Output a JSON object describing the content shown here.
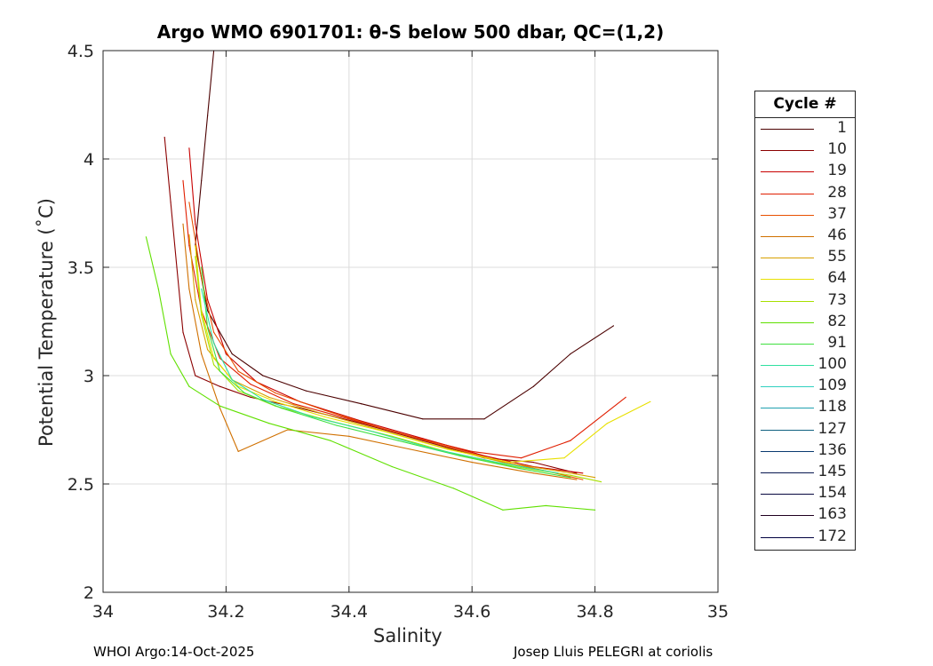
{
  "chart_data": {
    "type": "line",
    "title": "Argo WMO 6901701: θ-S below 500 dbar,  QC=(1,2)",
    "xlabel": "Salinity",
    "ylabel": "Potential Temperature (˚C)",
    "xlim": [
      34,
      35
    ],
    "ylim": [
      2,
      4.5
    ],
    "x_ticks": [
      "34",
      "34.2",
      "34.4",
      "34.6",
      "34.8",
      "35"
    ],
    "y_ticks": [
      "2",
      "2.5",
      "3",
      "3.5",
      "4",
      "4.5"
    ],
    "grid": true,
    "legend_title": "Cycle #",
    "legend_position": "right",
    "series": [
      {
        "name": "1",
        "color": "#4b0000",
        "x": [
          34.18,
          34.17,
          34.16,
          34.15,
          34.17,
          34.21,
          34.26,
          34.33,
          34.42,
          34.52,
          34.62,
          34.7,
          34.76,
          34.83
        ],
        "y": [
          4.5,
          4.2,
          3.9,
          3.6,
          3.3,
          3.1,
          3.0,
          2.93,
          2.87,
          2.8,
          2.8,
          2.95,
          3.1,
          3.23
        ]
      },
      {
        "name": "10",
        "color": "#8b0000",
        "x": [
          34.1,
          34.11,
          34.12,
          34.13,
          34.15,
          34.19,
          34.24,
          34.32,
          34.42,
          34.52,
          34.62,
          34.7,
          34.77
        ],
        "y": [
          4.1,
          3.8,
          3.5,
          3.2,
          3.0,
          2.95,
          2.9,
          2.85,
          2.78,
          2.7,
          2.62,
          2.6,
          2.55
        ]
      },
      {
        "name": "19",
        "color": "#c80000",
        "x": [
          34.14,
          34.15,
          34.17,
          34.2,
          34.25,
          34.32,
          34.42,
          34.52,
          34.62,
          34.7,
          34.78
        ],
        "y": [
          4.05,
          3.7,
          3.35,
          3.1,
          2.97,
          2.88,
          2.79,
          2.71,
          2.63,
          2.58,
          2.55
        ]
      },
      {
        "name": "28",
        "color": "#e01e00",
        "x": [
          34.13,
          34.14,
          34.16,
          34.19,
          34.24,
          34.31,
          34.4,
          34.5,
          34.6,
          34.68,
          34.76,
          34.85
        ],
        "y": [
          3.9,
          3.6,
          3.3,
          3.08,
          2.96,
          2.87,
          2.8,
          2.72,
          2.65,
          2.62,
          2.7,
          2.9
        ]
      },
      {
        "name": "37",
        "color": "#e85000",
        "x": [
          34.14,
          34.16,
          34.18,
          34.22,
          34.28,
          34.36,
          34.45,
          34.55,
          34.64,
          34.72,
          34.78
        ],
        "y": [
          3.8,
          3.45,
          3.2,
          3.02,
          2.92,
          2.84,
          2.76,
          2.68,
          2.61,
          2.56,
          2.52
        ]
      },
      {
        "name": "46",
        "color": "#d07000",
        "x": [
          34.13,
          34.14,
          34.16,
          34.19,
          34.22,
          34.3,
          34.4,
          34.5,
          34.6,
          34.7,
          34.77
        ],
        "y": [
          3.7,
          3.4,
          3.1,
          2.85,
          2.65,
          2.75,
          2.72,
          2.66,
          2.6,
          2.55,
          2.52
        ]
      },
      {
        "name": "55",
        "color": "#d8a000",
        "x": [
          34.14,
          34.15,
          34.17,
          34.21,
          34.27,
          34.35,
          34.45,
          34.55,
          34.65,
          34.74,
          34.8
        ],
        "y": [
          3.65,
          3.35,
          3.12,
          2.98,
          2.9,
          2.83,
          2.75,
          2.67,
          2.6,
          2.56,
          2.53
        ]
      },
      {
        "name": "64",
        "color": "#e8e000",
        "x": [
          34.15,
          34.16,
          34.18,
          34.22,
          34.28,
          34.36,
          34.46,
          34.56,
          34.66,
          34.75,
          34.82,
          34.89
        ],
        "y": [
          3.6,
          3.3,
          3.08,
          2.95,
          2.88,
          2.81,
          2.74,
          2.66,
          2.6,
          2.62,
          2.78,
          2.88
        ]
      },
      {
        "name": "73",
        "color": "#a8e000",
        "x": [
          34.15,
          34.16,
          34.18,
          34.22,
          34.28,
          34.37,
          34.47,
          34.57,
          34.67,
          34.76,
          34.81
        ],
        "y": [
          3.55,
          3.28,
          3.05,
          2.93,
          2.86,
          2.79,
          2.72,
          2.64,
          2.58,
          2.54,
          2.51
        ]
      },
      {
        "name": "82",
        "color": "#60e000",
        "x": [
          34.07,
          34.09,
          34.11,
          34.14,
          34.19,
          34.27,
          34.37,
          34.47,
          34.57,
          34.65,
          34.72,
          34.8
        ],
        "y": [
          3.64,
          3.4,
          3.1,
          2.95,
          2.86,
          2.78,
          2.7,
          2.58,
          2.48,
          2.38,
          2.4,
          2.38
        ]
      },
      {
        "name": "91",
        "color": "#40e040",
        "x": [
          34.16,
          34.17,
          34.19,
          34.23,
          34.29,
          34.38,
          34.48,
          34.58,
          34.68,
          34.76
        ],
        "y": [
          3.5,
          3.22,
          3.02,
          2.92,
          2.85,
          2.77,
          2.7,
          2.63,
          2.57,
          2.53
        ]
      },
      {
        "name": "100",
        "color": "#30e0a0",
        "x": [
          34.16,
          34.18,
          34.21,
          34.26,
          34.34,
          34.44,
          34.54,
          34.64,
          34.74
        ],
        "y": [
          3.4,
          3.15,
          2.98,
          2.89,
          2.81,
          2.74,
          2.66,
          2.6,
          2.55
        ]
      }
    ],
    "legend_entries": [
      {
        "label": "1",
        "color": "#4b0000"
      },
      {
        "label": "10",
        "color": "#8b0000"
      },
      {
        "label": "19",
        "color": "#c80000"
      },
      {
        "label": "28",
        "color": "#e01e00"
      },
      {
        "label": "37",
        "color": "#e85000"
      },
      {
        "label": "46",
        "color": "#d07000"
      },
      {
        "label": "55",
        "color": "#d8a000"
      },
      {
        "label": "64",
        "color": "#e8e000"
      },
      {
        "label": "73",
        "color": "#a8e000"
      },
      {
        "label": "82",
        "color": "#60e000"
      },
      {
        "label": "91",
        "color": "#40e040"
      },
      {
        "label": "100",
        "color": "#30e0a0"
      },
      {
        "label": "109",
        "color": "#30d0c0"
      },
      {
        "label": "118",
        "color": "#20a0b0"
      },
      {
        "label": "127",
        "color": "#106080"
      },
      {
        "label": "136",
        "color": "#0a3a70"
      },
      {
        "label": "145",
        "color": "#081850"
      },
      {
        "label": "154",
        "color": "#080840"
      },
      {
        "label": "163",
        "color": "#200020"
      },
      {
        "label": "172",
        "color": "#000040"
      }
    ]
  },
  "footer": {
    "left": "WHOI Argo:14-Oct-2025",
    "right": "Josep Lluis PELEGRI at coriolis"
  }
}
